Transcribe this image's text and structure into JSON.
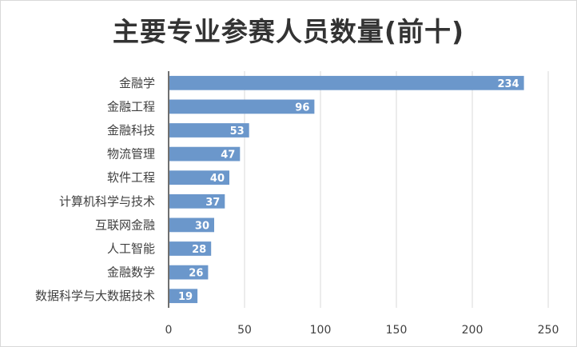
{
  "chart_data": {
    "type": "bar",
    "orientation": "horizontal",
    "title": "主要专业参赛人员数量(前十)",
    "xlabel": "",
    "ylabel": "",
    "categories": [
      "金融学",
      "金融工程",
      "金融科技",
      "物流管理",
      "软件工程",
      "计算机科学与技术",
      "互联网金融",
      "人工智能",
      "金融数学",
      "数据科学与大数据技术"
    ],
    "values": [
      234,
      96,
      53,
      47,
      40,
      37,
      30,
      28,
      26,
      19
    ],
    "xlim": [
      0,
      250
    ],
    "xticks": [
      0,
      50,
      100,
      150,
      200,
      250
    ],
    "grid": true,
    "legend": "none",
    "data_labels": true,
    "bar_color": "#6b97cb",
    "gridline_color": "#d9d9d9"
  }
}
